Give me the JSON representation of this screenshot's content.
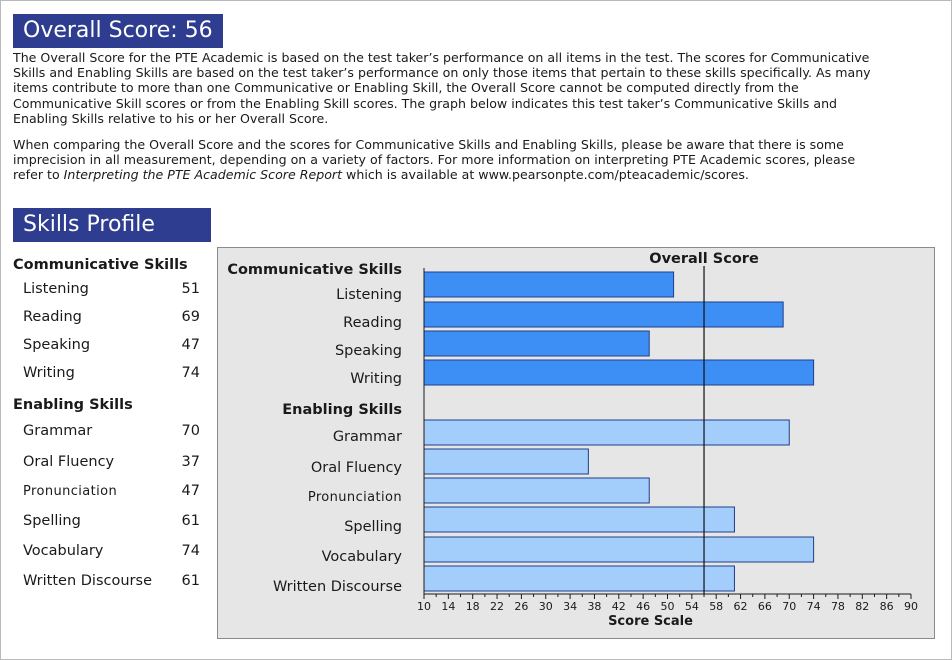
{
  "overall_banner": "Overall Score: 56",
  "intro_paragraph": "The Overall Score for the PTE Academic is based on the test taker’s performance on all items in the test.  The scores for Communicative Skills and Enabling Skills are based on the test taker’s performance on only those items that pertain to these skills specifically.  As many items contribute to more than one Communicative or Enabling Skill, the Overall Score cannot be computed directly from the Communicative Skill scores or from the Enabling Skill scores.  The graph below indicates this test taker’s Communicative Skills and Enabling Skills relative to his or her Overall Score.",
  "note_paragraph": {
    "before": "When comparing the Overall Score and the scores for Communicative Skills and Enabling Skills, please be aware that there is some imprecision in all measurement, depending on a variety of factors.  For more information on interpreting PTE Academic scores, please refer to ",
    "italic": "Interpreting the PTE Academic Score Report",
    "after": " which is available at www.pearsonpte.com/pteacademic/scores."
  },
  "skills_banner": "Skills Profile",
  "score_list": {
    "communicative_heading": "Communicative Skills",
    "enabling_heading": "Enabling Skills",
    "communicative": [
      {
        "label": "Listening",
        "score": "51"
      },
      {
        "label": "Reading",
        "score": "69"
      },
      {
        "label": "Speaking",
        "score": "47"
      },
      {
        "label": "Writing",
        "score": "74"
      }
    ],
    "enabling": [
      {
        "label": "Grammar",
        "score": "70"
      },
      {
        "label": "Oral Fluency",
        "score": "37"
      },
      {
        "label": "Pronunciation",
        "score": "47"
      },
      {
        "label": "Spelling",
        "score": "61"
      },
      {
        "label": "Vocabulary",
        "score": "74"
      },
      {
        "label": "Written Discourse",
        "score": "61"
      }
    ]
  },
  "chart_data": {
    "type": "bar",
    "orientation": "horizontal",
    "groups": [
      {
        "name": "Communicative Skills",
        "color": "#3d8ef5",
        "categories": [
          "Listening",
          "Reading",
          "Speaking",
          "Writing"
        ],
        "values": [
          51,
          69,
          47,
          74
        ]
      },
      {
        "name": "Enabling Skills",
        "color": "#a3cdfb",
        "categories": [
          "Grammar",
          "Oral Fluency",
          "Pronunciation",
          "Spelling",
          "Vocabulary",
          "Written Discourse"
        ],
        "values": [
          70,
          37,
          47,
          61,
          74,
          61
        ]
      }
    ],
    "reference_line": {
      "label": "Overall Score",
      "value": 56
    },
    "xlabel": "Score Scale",
    "xlim": [
      10,
      90
    ],
    "xticks": [
      10,
      14,
      18,
      22,
      26,
      30,
      34,
      38,
      42,
      46,
      50,
      54,
      58,
      62,
      66,
      70,
      74,
      78,
      82,
      86,
      90
    ],
    "grid": false
  }
}
